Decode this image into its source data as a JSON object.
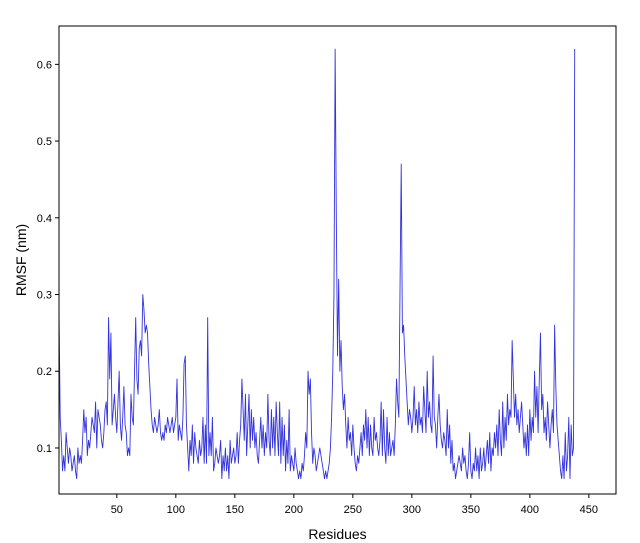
{
  "chart_data": {
    "type": "line",
    "title": "",
    "xlabel": "Residues",
    "ylabel": "RMSF (nm)",
    "xlim": [
      1,
      473
    ],
    "ylim": [
      0.04,
      0.65
    ],
    "grid": false,
    "legend": "none",
    "line_color": "#3333dd",
    "x_ticks": [
      50,
      100,
      150,
      200,
      250,
      300,
      350,
      400,
      450
    ],
    "x_tick_labels": [
      "50",
      "100",
      "150",
      "200",
      "250",
      "300",
      "350",
      "400",
      "450"
    ],
    "y_ticks": [
      0.1,
      0.2,
      0.3,
      0.4,
      0.5,
      0.6
    ],
    "y_tick_labels": [
      "0.1",
      "0.2",
      "0.3",
      "0.4",
      "0.5",
      "0.6"
    ],
    "series": [
      {
        "x_start": 1,
        "values": [
          0.28,
          0.14,
          0.11,
          0.07,
          0.09,
          0.07,
          0.12,
          0.1,
          0.08,
          0.1,
          0.09,
          0.07,
          0.08,
          0.09,
          0.07,
          0.06,
          0.1,
          0.08,
          0.09,
          0.08,
          0.11,
          0.15,
          0.12,
          0.14,
          0.09,
          0.11,
          0.1,
          0.12,
          0.14,
          0.13,
          0.12,
          0.16,
          0.1,
          0.15,
          0.14,
          0.13,
          0.11,
          0.1,
          0.12,
          0.15,
          0.16,
          0.13,
          0.27,
          0.19,
          0.25,
          0.13,
          0.15,
          0.17,
          0.14,
          0.12,
          0.16,
          0.2,
          0.13,
          0.11,
          0.14,
          0.18,
          0.13,
          0.12,
          0.09,
          0.1,
          0.09,
          0.17,
          0.14,
          0.13,
          0.2,
          0.27,
          0.19,
          0.17,
          0.23,
          0.24,
          0.22,
          0.3,
          0.28,
          0.25,
          0.26,
          0.25,
          0.21,
          0.18,
          0.15,
          0.13,
          0.12,
          0.14,
          0.13,
          0.12,
          0.13,
          0.15,
          0.12,
          0.11,
          0.12,
          0.11,
          0.13,
          0.12,
          0.14,
          0.13,
          0.12,
          0.13,
          0.14,
          0.12,
          0.13,
          0.14,
          0.19,
          0.11,
          0.13,
          0.12,
          0.11,
          0.14,
          0.21,
          0.22,
          0.13,
          0.1,
          0.07,
          0.11,
          0.09,
          0.13,
          0.08,
          0.12,
          0.1,
          0.09,
          0.08,
          0.11,
          0.09,
          0.1,
          0.14,
          0.08,
          0.13,
          0.08,
          0.27,
          0.09,
          0.12,
          0.09,
          0.14,
          0.07,
          0.08,
          0.1,
          0.09,
          0.08,
          0.09,
          0.11,
          0.06,
          0.09,
          0.07,
          0.1,
          0.07,
          0.09,
          0.06,
          0.11,
          0.08,
          0.09,
          0.1,
          0.08,
          0.09,
          0.12,
          0.08,
          0.11,
          0.13,
          0.19,
          0.15,
          0.11,
          0.17,
          0.09,
          0.13,
          0.17,
          0.1,
          0.15,
          0.11,
          0.14,
          0.1,
          0.12,
          0.09,
          0.08,
          0.11,
          0.14,
          0.1,
          0.13,
          0.09,
          0.12,
          0.1,
          0.17,
          0.11,
          0.09,
          0.15,
          0.1,
          0.14,
          0.09,
          0.16,
          0.12,
          0.09,
          0.16,
          0.08,
          0.14,
          0.09,
          0.13,
          0.07,
          0.11,
          0.08,
          0.15,
          0.07,
          0.09,
          0.08,
          0.07,
          0.1,
          0.08,
          0.07,
          0.06,
          0.07,
          0.06,
          0.08,
          0.07,
          0.09,
          0.12,
          0.1,
          0.2,
          0.17,
          0.19,
          0.12,
          0.08,
          0.1,
          0.09,
          0.07,
          0.08,
          0.09,
          0.1,
          0.09,
          0.08,
          0.07,
          0.06,
          0.07,
          0.06,
          0.07,
          0.08,
          0.1,
          0.14,
          0.2,
          0.3,
          0.62,
          0.4,
          0.22,
          0.32,
          0.2,
          0.24,
          0.18,
          0.15,
          0.17,
          0.13,
          0.1,
          0.14,
          0.11,
          0.12,
          0.09,
          0.13,
          0.1,
          0.08,
          0.07,
          0.09,
          0.08,
          0.1,
          0.12,
          0.09,
          0.13,
          0.11,
          0.15,
          0.1,
          0.14,
          0.09,
          0.13,
          0.1,
          0.09,
          0.14,
          0.11,
          0.12,
          0.1,
          0.09,
          0.11,
          0.16,
          0.09,
          0.15,
          0.1,
          0.08,
          0.14,
          0.09,
          0.12,
          0.09,
          0.1,
          0.11,
          0.09,
          0.13,
          0.19,
          0.16,
          0.14,
          0.31,
          0.47,
          0.25,
          0.26,
          0.22,
          0.19,
          0.16,
          0.13,
          0.15,
          0.14,
          0.12,
          0.14,
          0.18,
          0.13,
          0.15,
          0.12,
          0.16,
          0.13,
          0.14,
          0.12,
          0.18,
          0.15,
          0.12,
          0.2,
          0.14,
          0.16,
          0.13,
          0.12,
          0.22,
          0.14,
          0.13,
          0.1,
          0.14,
          0.17,
          0.13,
          0.11,
          0.1,
          0.12,
          0.11,
          0.09,
          0.15,
          0.1,
          0.13,
          0.08,
          0.11,
          0.07,
          0.08,
          0.06,
          0.07,
          0.08,
          0.09,
          0.08,
          0.07,
          0.1,
          0.08,
          0.09,
          0.07,
          0.06,
          0.08,
          0.12,
          0.07,
          0.06,
          0.08,
          0.07,
          0.1,
          0.07,
          0.09,
          0.06,
          0.1,
          0.07,
          0.08,
          0.1,
          0.07,
          0.09,
          0.11,
          0.08,
          0.12,
          0.07,
          0.1,
          0.09,
          0.12,
          0.1,
          0.13,
          0.09,
          0.15,
          0.11,
          0.09,
          0.16,
          0.1,
          0.14,
          0.11,
          0.17,
          0.13,
          0.15,
          0.14,
          0.24,
          0.19,
          0.14,
          0.17,
          0.13,
          0.15,
          0.12,
          0.14,
          0.16,
          0.13,
          0.1,
          0.12,
          0.09,
          0.13,
          0.09,
          0.15,
          0.11,
          0.14,
          0.12,
          0.2,
          0.14,
          0.18,
          0.12,
          0.19,
          0.25,
          0.15,
          0.17,
          0.12,
          0.14,
          0.11,
          0.16,
          0.13,
          0.1,
          0.13,
          0.15,
          0.12,
          0.26,
          0.18,
          0.13,
          0.11,
          0.09,
          0.07,
          0.06,
          0.09,
          0.06,
          0.12,
          0.07,
          0.09,
          0.14,
          0.06,
          0.13,
          0.09,
          0.1,
          0.62
        ]
      }
    ]
  }
}
